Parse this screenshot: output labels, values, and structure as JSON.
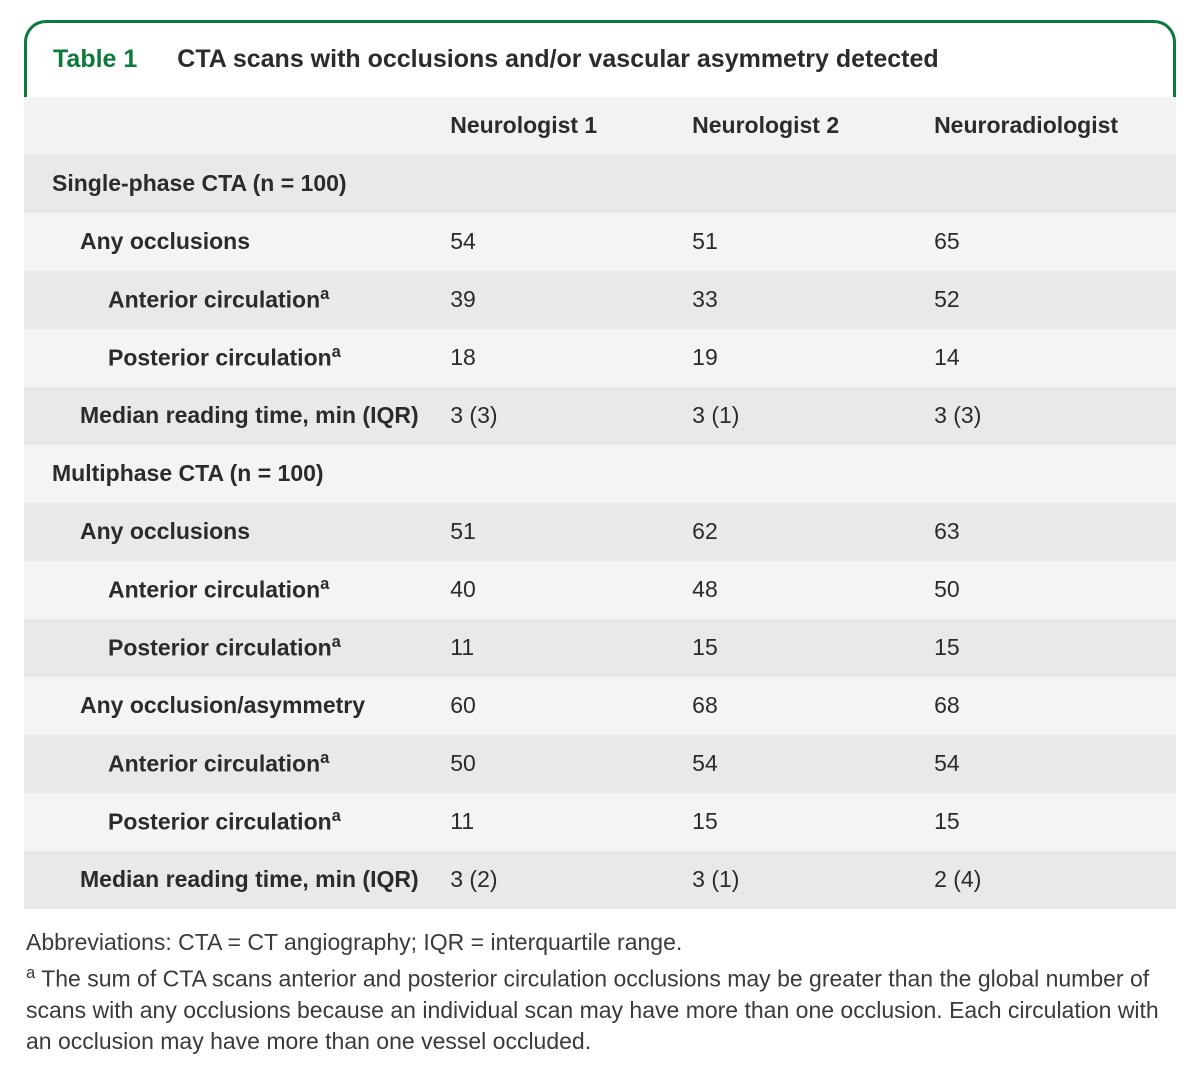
{
  "colors": {
    "accent": "#0b7a3b",
    "text": "#2b2b2b",
    "row_even": "#e9e9e9",
    "row_odd": "#f4f4f4",
    "header_bg": "#f2f2f2",
    "background": "#ffffff"
  },
  "header": {
    "table_label": "Table 1",
    "table_title": "CTA scans with occlusions and/or vascular asymmetry detected"
  },
  "columns": {
    "blank": "",
    "col1": "Neurologist 1",
    "col2": "Neurologist 2",
    "col3": "Neuroradiologist"
  },
  "rows": [
    {
      "label": "Single-phase CTA (n = 100)",
      "indent": 0,
      "sup": false,
      "v1": "",
      "v2": "",
      "v3": ""
    },
    {
      "label": "Any occlusions",
      "indent": 1,
      "sup": false,
      "v1": "54",
      "v2": "51",
      "v3": "65"
    },
    {
      "label": "Anterior circulation",
      "indent": 2,
      "sup": true,
      "v1": "39",
      "v2": "33",
      "v3": "52"
    },
    {
      "label": "Posterior circulation",
      "indent": 2,
      "sup": true,
      "v1": "18",
      "v2": "19",
      "v3": "14"
    },
    {
      "label": "Median reading time, min (IQR)",
      "indent": 1,
      "sup": false,
      "v1": "3 (3)",
      "v2": "3 (1)",
      "v3": "3 (3)"
    },
    {
      "label": "Multiphase CTA (n = 100)",
      "indent": 0,
      "sup": false,
      "v1": "",
      "v2": "",
      "v3": ""
    },
    {
      "label": "Any occlusions",
      "indent": 1,
      "sup": false,
      "v1": "51",
      "v2": "62",
      "v3": "63"
    },
    {
      "label": "Anterior circulation",
      "indent": 2,
      "sup": true,
      "v1": "40",
      "v2": "48",
      "v3": "50"
    },
    {
      "label": "Posterior circulation",
      "indent": 2,
      "sup": true,
      "v1": "11",
      "v2": "15",
      "v3": "15"
    },
    {
      "label": "Any occlusion/asymmetry",
      "indent": 1,
      "sup": false,
      "v1": "60",
      "v2": "68",
      "v3": "68"
    },
    {
      "label": "Anterior circulation",
      "indent": 2,
      "sup": true,
      "v1": "50",
      "v2": "54",
      "v3": "54"
    },
    {
      "label": "Posterior circulation",
      "indent": 2,
      "sup": true,
      "v1": "11",
      "v2": "15",
      "v3": "15"
    },
    {
      "label": "Median reading time, min (IQR)",
      "indent": 1,
      "sup": false,
      "v1": "3 (2)",
      "v2": "3 (1)",
      "v3": "2 (4)"
    }
  ],
  "footnotes": {
    "abbrev": "Abbreviations: CTA = CT angiography; IQR = interquartile range.",
    "note_a_marker": "a",
    "note_a_text": " The sum of CTA scans anterior and posterior circulation occlusions may be greater than the global number of scans with any occlusions because an individual scan may have more than one occlusion. Each circulation with an occlusion may have more than one vessel occluded."
  }
}
